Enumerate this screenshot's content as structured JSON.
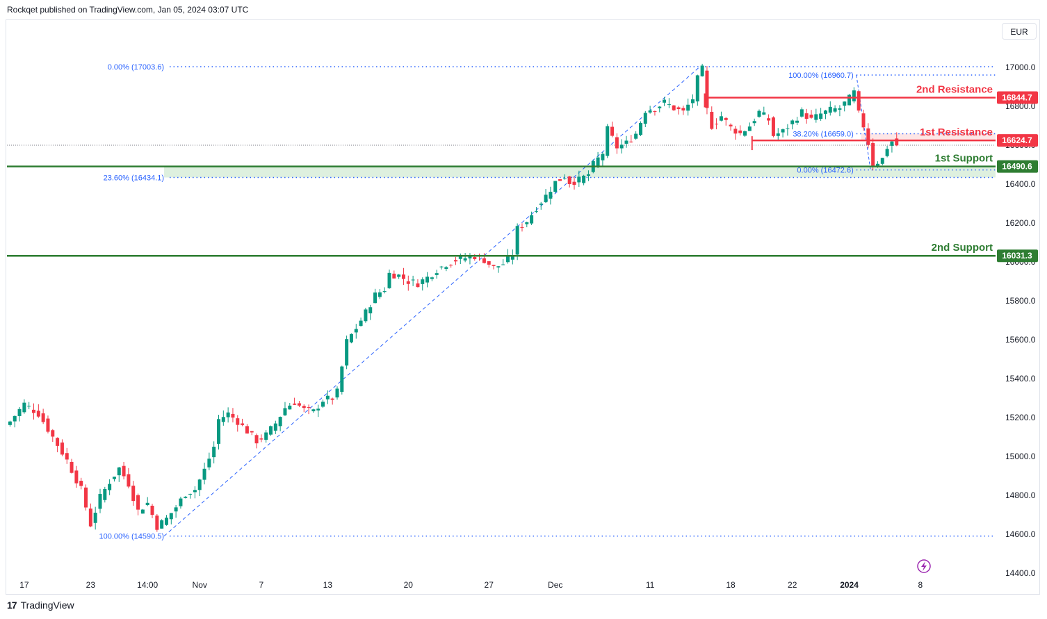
{
  "header": {
    "publisher": "Rockqet published on TradingView.com, Jan 05, 2024 03:07 UTC"
  },
  "currency": "EUR",
  "footer": {
    "logo_mark": "17",
    "brand": "TradingView"
  },
  "colors": {
    "up": "#089981",
    "down": "#f23645",
    "support": "#2e7d32",
    "resistance": "#f23645",
    "fib": "#2962ff",
    "zone": "#c8e6c9"
  },
  "chart_data": {
    "type": "candlestick",
    "ylim": [
      14400,
      17100
    ],
    "yticks": [
      14400,
      14600,
      14800,
      15000,
      15200,
      15400,
      15600,
      15800,
      16000,
      16200,
      16400,
      16600,
      16800,
      17000
    ],
    "x_ticks": [
      {
        "label": "17",
        "bar": 3
      },
      {
        "label": "23",
        "bar": 17
      },
      {
        "label": "14:00",
        "bar": 29
      },
      {
        "label": "Nov",
        "bar": 40
      },
      {
        "label": "7",
        "bar": 53
      },
      {
        "label": "13",
        "bar": 67
      },
      {
        "label": "20",
        "bar": 84
      },
      {
        "label": "27",
        "bar": 101
      },
      {
        "label": "Dec",
        "bar": 115
      },
      {
        "label": "11",
        "bar": 135
      },
      {
        "label": "18",
        "bar": 152
      },
      {
        "label": "22",
        "bar": 165
      },
      {
        "label": "2024",
        "bar": 177,
        "bold": true
      },
      {
        "label": "8",
        "bar": 192
      }
    ],
    "close_path": [
      [
        0,
        15180
      ],
      [
        3,
        15270
      ],
      [
        6,
        15220
      ],
      [
        9,
        15100
      ],
      [
        12,
        14980
      ],
      [
        15,
        14830
      ],
      [
        17,
        14650
      ],
      [
        19,
        14790
      ],
      [
        21,
        14870
      ],
      [
        23,
        14940
      ],
      [
        25,
        14860
      ],
      [
        27,
        14720
      ],
      [
        29,
        14760
      ],
      [
        31,
        14640
      ],
      [
        33,
        14680
      ],
      [
        35,
        14740
      ],
      [
        37,
        14810
      ],
      [
        39,
        14830
      ],
      [
        41,
        14930
      ],
      [
        43,
        15050
      ],
      [
        44,
        15190
      ],
      [
        46,
        15220
      ],
      [
        48,
        15180
      ],
      [
        50,
        15130
      ],
      [
        52,
        15080
      ],
      [
        54,
        15110
      ],
      [
        56,
        15170
      ],
      [
        58,
        15250
      ],
      [
        60,
        15280
      ],
      [
        62,
        15240
      ],
      [
        64,
        15230
      ],
      [
        66,
        15290
      ],
      [
        68,
        15300
      ],
      [
        69,
        15330
      ],
      [
        71,
        15590
      ],
      [
        73,
        15660
      ],
      [
        75,
        15740
      ],
      [
        77,
        15830
      ],
      [
        79,
        15860
      ],
      [
        80,
        15940
      ],
      [
        82,
        15930
      ],
      [
        84,
        15900
      ],
      [
        86,
        15890
      ],
      [
        88,
        15920
      ],
      [
        90,
        15960
      ],
      [
        92,
        15990
      ],
      [
        94,
        16010
      ],
      [
        96,
        16020
      ],
      [
        98,
        16030
      ],
      [
        100,
        16010
      ],
      [
        102,
        15970
      ],
      [
        104,
        15990
      ],
      [
        106,
        16040
      ],
      [
        107,
        16170
      ],
      [
        109,
        16210
      ],
      [
        111,
        16280
      ],
      [
        113,
        16340
      ],
      [
        115,
        16410
      ],
      [
        117,
        16440
      ],
      [
        118,
        16410
      ],
      [
        120,
        16420
      ],
      [
        122,
        16450
      ],
      [
        123,
        16500
      ],
      [
        125,
        16560
      ],
      [
        126,
        16680
      ],
      [
        128,
        16590
      ],
      [
        130,
        16610
      ],
      [
        132,
        16660
      ],
      [
        134,
        16780
      ],
      [
        136,
        16790
      ],
      [
        138,
        16820
      ],
      [
        140,
        16790
      ],
      [
        142,
        16770
      ],
      [
        144,
        16840
      ],
      [
        145,
        16940
      ],
      [
        146,
        16990
      ],
      [
        147,
        16780
      ],
      [
        148,
        16700
      ],
      [
        150,
        16750
      ],
      [
        152,
        16690
      ],
      [
        154,
        16660
      ],
      [
        156,
        16700
      ],
      [
        158,
        16770
      ],
      [
        160,
        16730
      ],
      [
        161,
        16650
      ],
      [
        163,
        16670
      ],
      [
        165,
        16720
      ],
      [
        167,
        16770
      ],
      [
        169,
        16730
      ],
      [
        171,
        16760
      ],
      [
        173,
        16780
      ],
      [
        175,
        16790
      ],
      [
        177,
        16840
      ],
      [
        178,
        16870
      ],
      [
        179,
        16760
      ],
      [
        180,
        16700
      ],
      [
        181,
        16610
      ],
      [
        182,
        16500
      ],
      [
        184,
        16530
      ],
      [
        185,
        16590
      ],
      [
        186,
        16620
      ],
      [
        187,
        16600
      ]
    ],
    "fib_main": {
      "levels": [
        {
          "label": "0.00% (17003.6)",
          "price": 17003.6
        },
        {
          "label": "23.60% (16434.1)",
          "price": 16434.1
        },
        {
          "label": "100.00% (14590.5)",
          "price": 14590.5
        }
      ]
    },
    "fib_secondary": {
      "levels": [
        {
          "label": "100.00% (16960.7)",
          "price": 16960.7
        },
        {
          "label": "38.20% (16659.0)",
          "price": 16659.0
        },
        {
          "label": "0.00% (16472.6)",
          "price": 16472.6
        }
      ]
    },
    "horizontal_levels": [
      {
        "name": "2nd Resistance",
        "price": 16844.7,
        "tag": "16844.7",
        "kind": "resistance"
      },
      {
        "name": "1st Resistance",
        "price": 16624.7,
        "tag": "16624.7",
        "kind": "resistance"
      },
      {
        "name": "1st Support",
        "price": 16490.6,
        "tag": "16490.6",
        "kind": "support"
      },
      {
        "name": "2nd Support",
        "price": 16031.3,
        "tag": "16031.3",
        "kind": "support"
      }
    ]
  }
}
